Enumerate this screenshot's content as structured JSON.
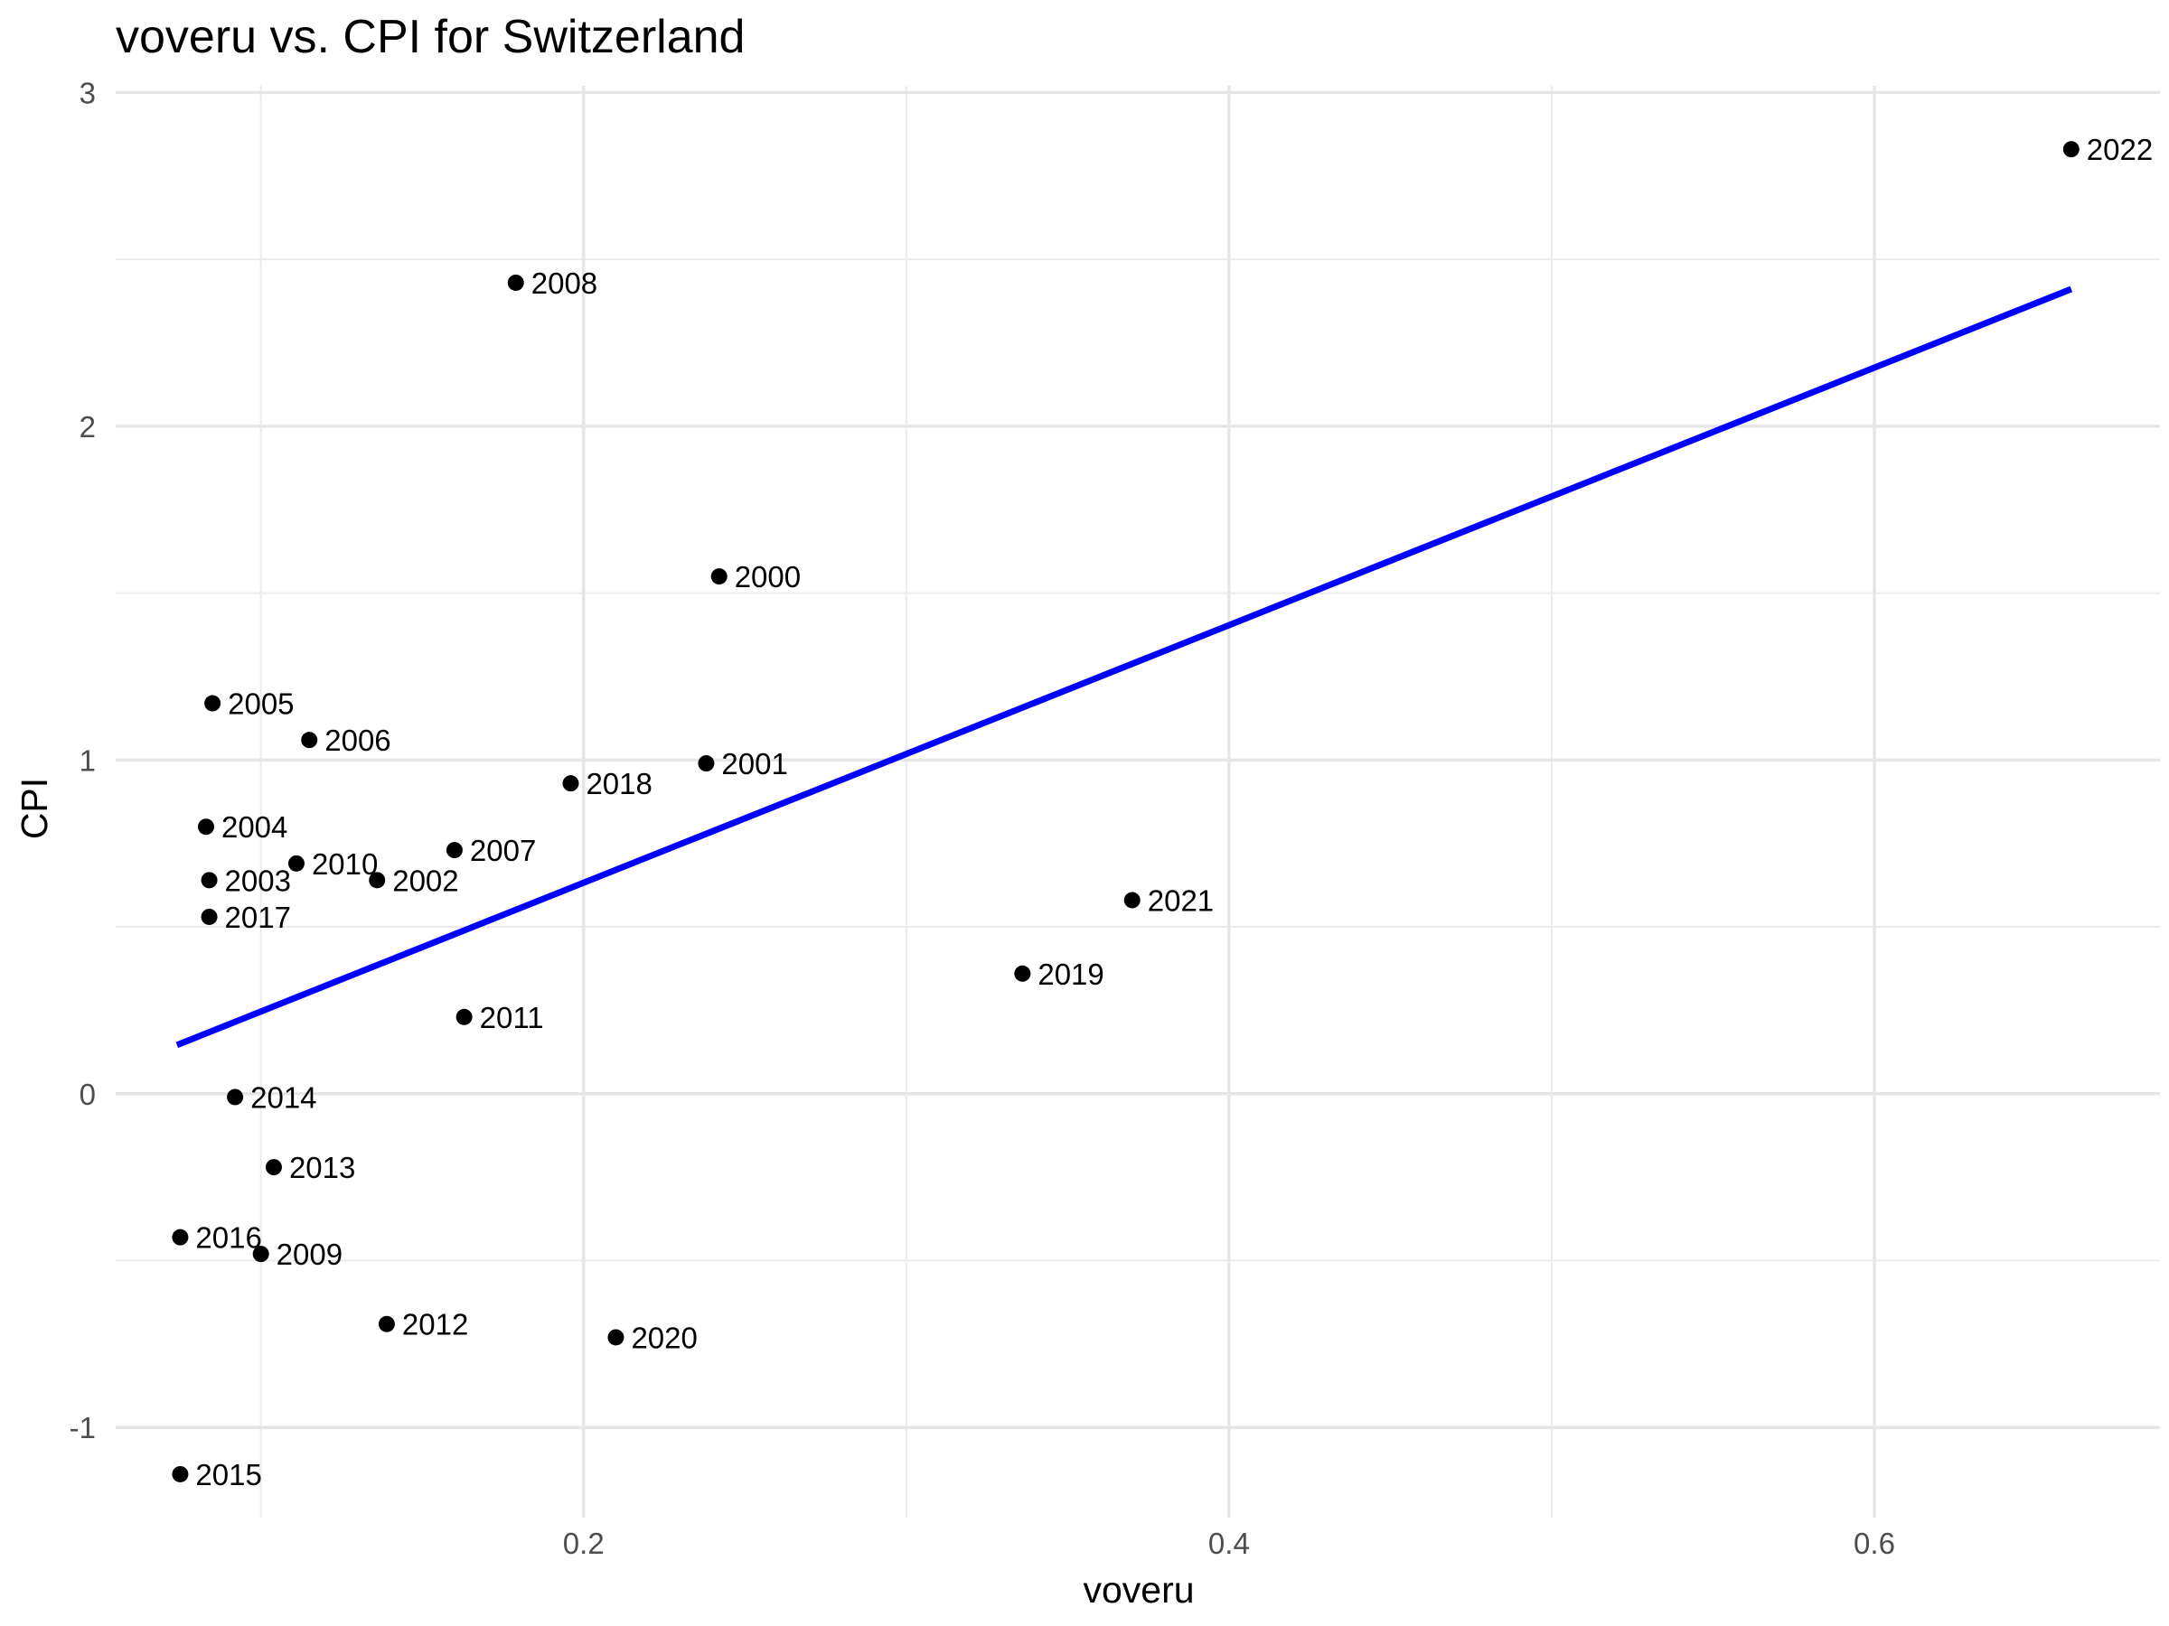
{
  "chart_data": {
    "type": "scatter",
    "title": "voveru vs. CPI for Switzerland",
    "xlabel": "voveru",
    "ylabel": "CPI",
    "xlim": [
      0.055,
      0.6885
    ],
    "ylim": [
      -1.27,
      3.02
    ],
    "x_ticks_major": [
      0.2,
      0.4,
      0.6
    ],
    "x_ticks_minor": [
      0.1,
      0.3,
      0.5
    ],
    "y_ticks_major": [
      -1,
      0,
      1,
      2,
      3
    ],
    "y_ticks_minor": [
      -0.5,
      0.5,
      1.5,
      2.5
    ],
    "x_tick_labels": [
      "0.2",
      "0.4",
      "0.6"
    ],
    "y_tick_labels": [
      "-1",
      "0",
      "1",
      "2",
      "3"
    ],
    "grid": true,
    "point_color": "#000000",
    "fit_line": {
      "color": "#0000ff",
      "x": [
        0.074,
        0.661
      ],
      "y": [
        0.146,
        2.411
      ]
    },
    "points": [
      {
        "label": "2000",
        "x": 0.242,
        "y": 1.55
      },
      {
        "label": "2001",
        "x": 0.238,
        "y": 0.99
      },
      {
        "label": "2002",
        "x": 0.136,
        "y": 0.64
      },
      {
        "label": "2003",
        "x": 0.084,
        "y": 0.64
      },
      {
        "label": "2004",
        "x": 0.083,
        "y": 0.8
      },
      {
        "label": "2005",
        "x": 0.085,
        "y": 1.17
      },
      {
        "label": "2006",
        "x": 0.115,
        "y": 1.06
      },
      {
        "label": "2007",
        "x": 0.16,
        "y": 0.73
      },
      {
        "label": "2008",
        "x": 0.179,
        "y": 2.43
      },
      {
        "label": "2009",
        "x": 0.1,
        "y": -0.48
      },
      {
        "label": "2010",
        "x": 0.111,
        "y": 0.69
      },
      {
        "label": "2011",
        "x": 0.163,
        "y": 0.23
      },
      {
        "label": "2012",
        "x": 0.139,
        "y": -0.69
      },
      {
        "label": "2013",
        "x": 0.104,
        "y": -0.22
      },
      {
        "label": "2014",
        "x": 0.092,
        "y": -0.01
      },
      {
        "label": "2015",
        "x": 0.075,
        "y": -1.14
      },
      {
        "label": "2016",
        "x": 0.075,
        "y": -0.43
      },
      {
        "label": "2017",
        "x": 0.084,
        "y": 0.53
      },
      {
        "label": "2018",
        "x": 0.196,
        "y": 0.93
      },
      {
        "label": "2019",
        "x": 0.336,
        "y": 0.36
      },
      {
        "label": "2020",
        "x": 0.21,
        "y": -0.73
      },
      {
        "label": "2021",
        "x": 0.37,
        "y": 0.58
      },
      {
        "label": "2022",
        "x": 0.661,
        "y": 2.83
      }
    ]
  }
}
